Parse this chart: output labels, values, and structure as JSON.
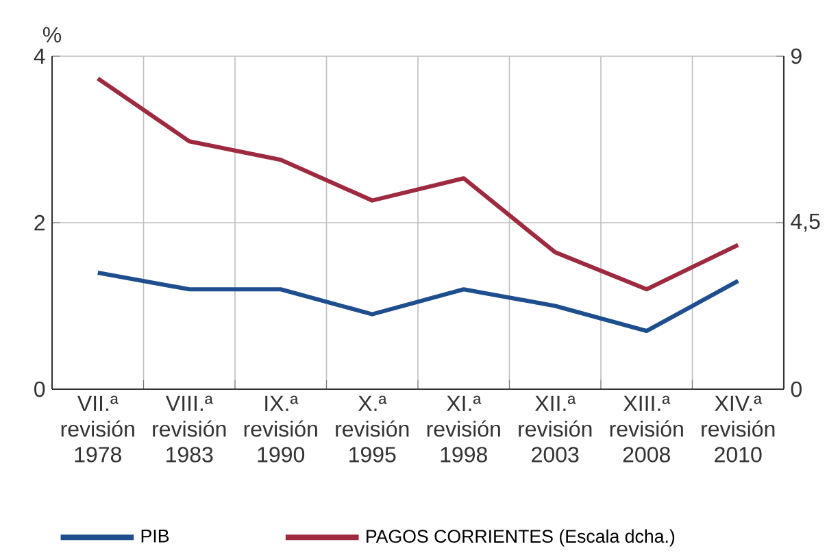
{
  "chart_data": {
    "type": "line",
    "ylabel": "%",
    "categories": [
      "VII.ª revisión 1978",
      "VIII.ª revisión 1983",
      "IX.ª revisión 1990",
      "X.ª revisión 1995",
      "XI.ª revisión 1998",
      "XII.ª revisión 2003",
      "XIII.ª revisión 2008",
      "XIV.ª revisión 2010"
    ],
    "series": [
      {
        "name": "PIB",
        "color": "#1f4e8f",
        "values": [
          1.4,
          1.2,
          1.2,
          0.9,
          1.2,
          1.0,
          0.7,
          1.3
        ]
      },
      {
        "name": "PAGOS CORRIENTES (Escala dcha.)",
        "color": "#9e2a3f",
        "axis": "y2",
        "values": [
          8.4,
          6.7,
          6.2,
          5.1,
          5.7,
          3.7,
          2.7,
          3.9
        ]
      }
    ],
    "ylim": [
      0,
      4
    ],
    "yticks": [
      0,
      2,
      4
    ],
    "y2lim": [
      0,
      9
    ],
    "y2ticks": [
      0,
      {
        "value": 4.5,
        "label": "4,5"
      },
      9
    ],
    "grid": true,
    "legend": "bottom"
  }
}
